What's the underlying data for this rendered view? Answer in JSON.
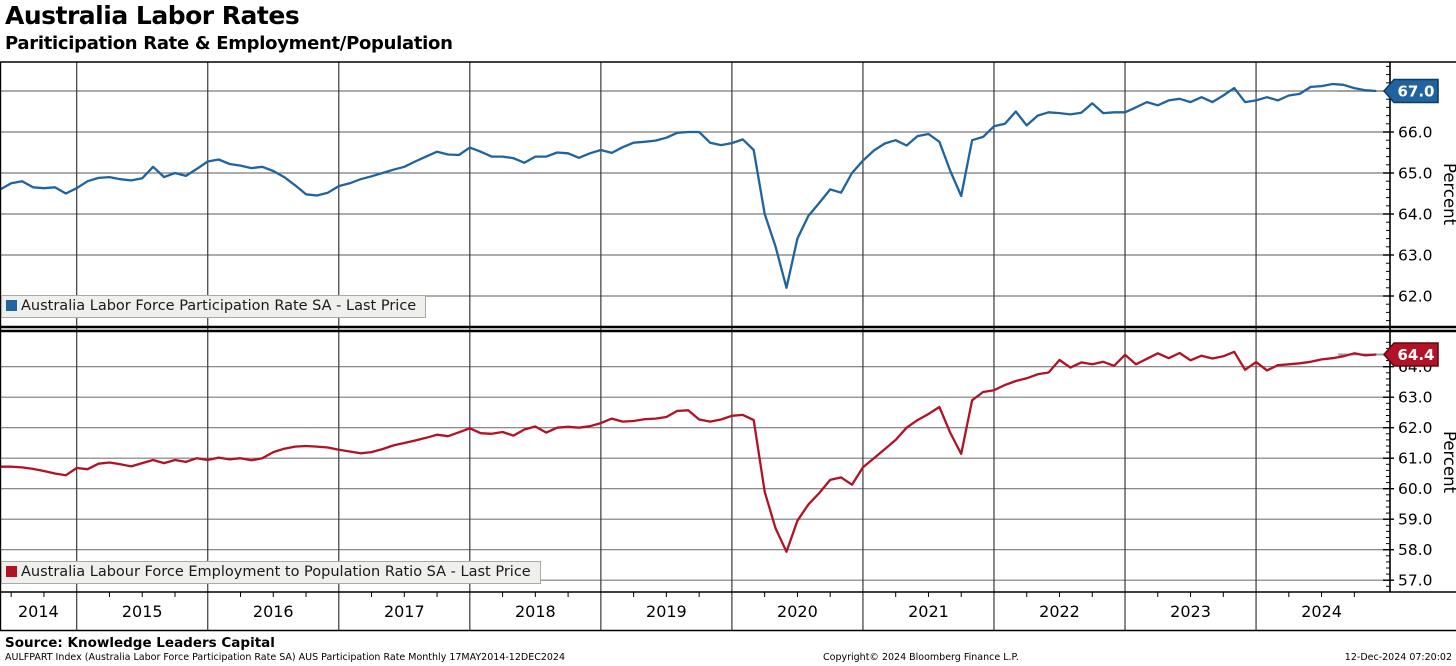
{
  "title": "Australia Labor Rates",
  "subtitle": "Pariticipation Rate & Employment/Population",
  "footer": {
    "source": "Source: Knowledge Leaders Capital",
    "detail": "AULFPART Index (Australia Labor Force Participation Rate SA) AUS Participation Rate  Monthly 17MAY2014-12DEC2024",
    "copyright": "Copyright© 2024 Bloomberg Finance L.P.",
    "timestamp": "12-Dec-2024 07:20:02"
  },
  "colors": {
    "blue_line": "#1f639f",
    "blue_badge_border": "#123a66",
    "red_line": "#b11226",
    "red_badge_border": "#5f0a14",
    "h_grid": "#7a7a7a",
    "v_grid": "#3a3a3a",
    "axis": "#000000",
    "tracker": "#a0a0a0"
  },
  "chart_data": {
    "type": "line",
    "x_unit": "month",
    "x_range_label": "17MAY2014-12DEC2024",
    "year_labels": [
      "2014",
      "2015",
      "2016",
      "2017",
      "2018",
      "2019",
      "2020",
      "2021",
      "2022",
      "2023",
      "2024"
    ],
    "panels": [
      {
        "name": "participation-rate",
        "legend": "Australia Labor Force Participation Rate SA - Last Price",
        "color": "#1f639f",
        "ylabel": "Percent",
        "yticks": [
          62.0,
          63.0,
          64.0,
          65.0,
          66.0,
          67.0
        ],
        "ylim": [
          61.27,
          67.71
        ],
        "last_price": "67.0",
        "last_value": 67.0,
        "values": [
          64.6,
          64.6,
          64.75,
          64.8,
          64.65,
          64.63,
          64.65,
          64.5,
          64.63,
          64.8,
          64.88,
          64.9,
          64.85,
          64.82,
          64.87,
          65.15,
          64.9,
          65.0,
          64.93,
          65.1,
          65.28,
          65.33,
          65.22,
          65.18,
          65.12,
          65.15,
          65.05,
          64.9,
          64.7,
          64.48,
          64.45,
          64.52,
          64.68,
          64.75,
          64.85,
          64.92,
          65.0,
          65.08,
          65.15,
          65.28,
          65.4,
          65.52,
          65.45,
          65.44,
          65.62,
          65.52,
          65.4,
          65.4,
          65.36,
          65.25,
          65.4,
          65.4,
          65.5,
          65.48,
          65.37,
          65.48,
          65.56,
          65.49,
          65.63,
          65.74,
          65.76,
          65.79,
          65.86,
          65.98,
          66.0,
          66.0,
          65.74,
          65.68,
          65.73,
          65.82,
          65.56,
          64.0,
          63.2,
          62.2,
          63.4,
          63.95,
          64.27,
          64.6,
          64.52,
          65.0,
          65.3,
          65.55,
          65.72,
          65.8,
          65.67,
          65.9,
          65.95,
          65.76,
          65.05,
          64.44,
          65.8,
          65.88,
          66.14,
          66.2,
          66.5,
          66.16,
          66.4,
          66.48,
          66.46,
          66.43,
          66.47,
          66.7,
          66.46,
          66.48,
          66.48,
          66.6,
          66.73,
          66.65,
          66.77,
          66.81,
          66.73,
          66.85,
          66.73,
          66.89,
          67.07,
          66.73,
          66.77,
          66.85,
          66.77,
          66.89,
          66.93,
          67.1,
          67.12,
          67.17,
          67.15,
          67.07,
          67.02,
          67.0
        ]
      },
      {
        "name": "employment-to-population",
        "legend": "Australia Labour Force Employment to Population Ratio SA - Last Price",
        "color": "#b11226",
        "ylabel": "Percent",
        "yticks": [
          57.0,
          58.0,
          59.0,
          60.0,
          61.0,
          62.0,
          63.0,
          64.0
        ],
        "ylim": [
          56.62,
          65.14
        ],
        "last_price": "64.4",
        "last_value": 64.4,
        "values": [
          60.72,
          60.72,
          60.72,
          60.7,
          60.65,
          60.58,
          60.5,
          60.44,
          60.68,
          60.64,
          60.82,
          60.86,
          60.8,
          60.73,
          60.84,
          60.94,
          60.84,
          60.94,
          60.88,
          61.0,
          60.94,
          61.02,
          60.96,
          61.0,
          60.93,
          61.0,
          61.2,
          61.31,
          61.38,
          61.4,
          61.38,
          61.35,
          61.28,
          61.22,
          61.16,
          61.2,
          61.3,
          61.42,
          61.5,
          61.58,
          61.67,
          61.77,
          61.72,
          61.85,
          61.98,
          61.82,
          61.8,
          61.86,
          61.74,
          61.94,
          62.04,
          61.84,
          62.0,
          62.03,
          62.0,
          62.05,
          62.15,
          62.3,
          62.2,
          62.22,
          62.28,
          62.3,
          62.35,
          62.55,
          62.57,
          62.27,
          62.2,
          62.27,
          62.39,
          62.42,
          62.25,
          59.9,
          58.7,
          57.93,
          58.95,
          59.48,
          59.86,
          60.29,
          60.37,
          60.13,
          60.7,
          61.0,
          61.3,
          61.6,
          62.0,
          62.25,
          62.45,
          62.68,
          61.83,
          61.14,
          62.9,
          63.17,
          63.23,
          63.4,
          63.53,
          63.62,
          63.75,
          63.81,
          64.22,
          63.97,
          64.14,
          64.08,
          64.16,
          64.03,
          64.39,
          64.08,
          64.26,
          64.44,
          64.28,
          64.45,
          64.21,
          64.36,
          64.27,
          64.34,
          64.49,
          63.9,
          64.15,
          63.88,
          64.05,
          64.08,
          64.11,
          64.16,
          64.24,
          64.28,
          64.34,
          64.44,
          64.37,
          64.4
        ]
      }
    ]
  }
}
